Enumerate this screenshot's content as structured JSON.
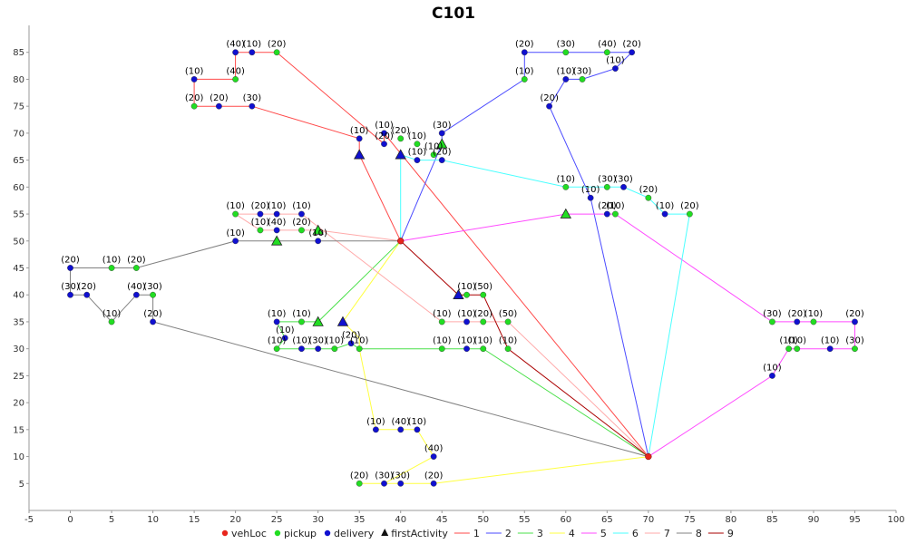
{
  "chart_data": {
    "type": "scatter",
    "title": "C101",
    "xlabel": "",
    "ylabel": "",
    "xlim": [
      -5,
      100
    ],
    "ylim": [
      0,
      90
    ],
    "x_ticks": [
      -5,
      0,
      5,
      10,
      15,
      20,
      25,
      30,
      35,
      40,
      45,
      50,
      55,
      60,
      65,
      70,
      75,
      80,
      85,
      90,
      95,
      100
    ],
    "y_ticks": [
      5,
      10,
      15,
      20,
      25,
      30,
      35,
      40,
      45,
      50,
      55,
      60,
      65,
      70,
      75,
      80,
      85
    ],
    "grid": false,
    "legend_position": "bottom",
    "colors": {
      "vehLoc": "#e8251c",
      "pickup": "#22dd22",
      "delivery": "#1010d0",
      "firstActivity": "#111111"
    },
    "legend": [
      {
        "label": "vehLoc",
        "kind": "dot",
        "color": "#e8251c"
      },
      {
        "label": "pickup",
        "kind": "dot",
        "color": "#22dd22"
      },
      {
        "label": "delivery",
        "kind": "dot",
        "color": "#1010d0"
      },
      {
        "label": "firstActivity",
        "kind": "triangle",
        "color": "#111111"
      },
      {
        "label": "1",
        "kind": "line",
        "color": "#ff4a4a"
      },
      {
        "label": "2",
        "kind": "line",
        "color": "#4a4aff"
      },
      {
        "label": "3",
        "kind": "line",
        "color": "#4ae04a"
      },
      {
        "label": "4",
        "kind": "line",
        "color": "#ffff40"
      },
      {
        "label": "5",
        "kind": "line",
        "color": "#ff4aff"
      },
      {
        "label": "6",
        "kind": "line",
        "color": "#4affff"
      },
      {
        "label": "7",
        "kind": "line",
        "color": "#ffaaaa"
      },
      {
        "label": "8",
        "kind": "line",
        "color": "#808080"
      },
      {
        "label": "9",
        "kind": "line",
        "color": "#aa0000"
      }
    ],
    "vehicle_locations": [
      {
        "x": 40,
        "y": 50
      },
      {
        "x": 70,
        "y": 10
      }
    ],
    "routes": [
      {
        "name": "1",
        "color": "#ff4a4a",
        "points": [
          [
            40,
            50
          ],
          [
            35,
            66
          ],
          [
            35,
            69
          ],
          [
            22,
            75
          ],
          [
            18,
            75
          ],
          [
            15,
            75
          ],
          [
            15,
            80
          ],
          [
            20,
            80
          ],
          [
            20,
            85
          ],
          [
            22,
            85
          ],
          [
            25,
            85
          ],
          [
            38,
            68
          ],
          [
            38,
            70
          ],
          [
            70,
            10
          ]
        ]
      },
      {
        "name": "2",
        "color": "#4a4aff",
        "points": [
          [
            40,
            50
          ],
          [
            45,
            68
          ],
          [
            45,
            70
          ],
          [
            55,
            80
          ],
          [
            55,
            85
          ],
          [
            60,
            85
          ],
          [
            65,
            85
          ],
          [
            68,
            85
          ],
          [
            66,
            82
          ],
          [
            62,
            80
          ],
          [
            60,
            80
          ],
          [
            58,
            75
          ],
          [
            63,
            58
          ],
          [
            70,
            10
          ]
        ]
      },
      {
        "name": "3",
        "color": "#4ae04a",
        "points": [
          [
            40,
            50
          ],
          [
            30,
            35
          ],
          [
            28,
            35
          ],
          [
            25,
            35
          ],
          [
            26,
            32
          ],
          [
            25,
            30
          ],
          [
            28,
            30
          ],
          [
            30,
            30
          ],
          [
            32,
            30
          ],
          [
            34,
            31
          ],
          [
            35,
            30
          ],
          [
            45,
            30
          ],
          [
            48,
            30
          ],
          [
            50,
            30
          ],
          [
            70,
            10
          ]
        ]
      },
      {
        "name": "4",
        "color": "#ffff40",
        "points": [
          [
            40,
            50
          ],
          [
            33,
            35
          ],
          [
            35,
            32
          ],
          [
            35,
            30
          ],
          [
            37,
            15
          ],
          [
            40,
            15
          ],
          [
            42,
            15
          ],
          [
            44,
            10
          ],
          [
            38,
            5
          ],
          [
            35,
            5
          ],
          [
            40,
            5
          ],
          [
            44,
            5
          ],
          [
            70,
            10
          ]
        ]
      },
      {
        "name": "5",
        "color": "#ff4aff",
        "points": [
          [
            40,
            50
          ],
          [
            60,
            55
          ],
          [
            65,
            55
          ],
          [
            66,
            55
          ],
          [
            85,
            35
          ],
          [
            88,
            35
          ],
          [
            90,
            35
          ],
          [
            95,
            35
          ],
          [
            95,
            30
          ],
          [
            92,
            30
          ],
          [
            88,
            30
          ],
          [
            87,
            30
          ],
          [
            85,
            25
          ],
          [
            70,
            10
          ]
        ]
      },
      {
        "name": "6",
        "color": "#4affff",
        "points": [
          [
            40,
            50
          ],
          [
            40,
            66
          ],
          [
            42,
            65
          ],
          [
            44,
            65
          ],
          [
            45,
            65
          ],
          [
            60,
            60
          ],
          [
            65,
            60
          ],
          [
            67,
            60
          ],
          [
            70,
            58
          ],
          [
            72,
            55
          ],
          [
            75,
            55
          ],
          [
            70,
            10
          ]
        ]
      },
      {
        "name": "7",
        "color": "#ffaaaa",
        "points": [
          [
            40,
            50
          ],
          [
            30,
            52
          ],
          [
            28,
            52
          ],
          [
            25,
            52
          ],
          [
            23,
            52
          ],
          [
            20,
            55
          ],
          [
            23,
            55
          ],
          [
            25,
            55
          ],
          [
            28,
            55
          ],
          [
            45,
            35
          ],
          [
            48,
            35
          ],
          [
            50,
            35
          ],
          [
            53,
            35
          ],
          [
            70,
            10
          ]
        ]
      },
      {
        "name": "8",
        "color": "#808080",
        "points": [
          [
            40,
            50
          ],
          [
            30,
            50
          ],
          [
            25,
            50
          ],
          [
            20,
            50
          ],
          [
            8,
            45
          ],
          [
            5,
            45
          ],
          [
            0,
            45
          ],
          [
            0,
            40
          ],
          [
            2,
            40
          ],
          [
            5,
            35
          ],
          [
            8,
            40
          ],
          [
            10,
            40
          ],
          [
            10,
            35
          ],
          [
            70,
            10
          ]
        ]
      },
      {
        "name": "9",
        "color": "#aa0000",
        "points": [
          [
            40,
            50
          ],
          [
            47,
            40
          ],
          [
            48,
            40
          ],
          [
            50,
            40
          ],
          [
            53,
            30
          ],
          [
            70,
            10
          ]
        ]
      }
    ],
    "first_activities": [
      {
        "x": 35,
        "y": 66,
        "route": "1",
        "type": "delivery"
      },
      {
        "x": 45,
        "y": 68,
        "route": "2",
        "type": "pickup"
      },
      {
        "x": 30,
        "y": 35,
        "route": "3",
        "type": "pickup"
      },
      {
        "x": 33,
        "y": 35,
        "route": "4",
        "type": "delivery"
      },
      {
        "x": 60,
        "y": 55,
        "route": "5",
        "type": "pickup"
      },
      {
        "x": 40,
        "y": 66,
        "route": "6",
        "type": "delivery"
      },
      {
        "x": 30,
        "y": 52,
        "route": "7",
        "type": "pickup"
      },
      {
        "x": 25,
        "y": 50,
        "route": "8",
        "type": "pickup"
      },
      {
        "x": 47,
        "y": 40,
        "route": "9",
        "type": "delivery"
      }
    ],
    "pickups": [
      {
        "x": 25,
        "y": 85,
        "label": "(20)"
      },
      {
        "x": 20,
        "y": 80,
        "label": "(40)"
      },
      {
        "x": 15,
        "y": 75,
        "label": "(20)"
      },
      {
        "x": 60,
        "y": 85,
        "label": "(30)"
      },
      {
        "x": 65,
        "y": 85,
        "label": "(40)"
      },
      {
        "x": 55,
        "y": 80,
        "label": "(10)"
      },
      {
        "x": 62,
        "y": 80,
        "label": "(30)"
      },
      {
        "x": 42,
        "y": 68,
        "label": "(10)"
      },
      {
        "x": 44,
        "y": 66,
        "label": "(10)"
      },
      {
        "x": 40,
        "y": 69,
        "label": "(20)"
      },
      {
        "x": 60,
        "y": 60,
        "label": "(10)"
      },
      {
        "x": 65,
        "y": 60,
        "label": "(30)"
      },
      {
        "x": 70,
        "y": 58,
        "label": "(20)"
      },
      {
        "x": 75,
        "y": 55,
        "label": "(20)"
      },
      {
        "x": 66,
        "y": 55,
        "label": "(10)"
      },
      {
        "x": 20,
        "y": 55,
        "label": "(10)"
      },
      {
        "x": 23,
        "y": 52,
        "label": "(10)"
      },
      {
        "x": 28,
        "y": 52,
        "label": "(20)"
      },
      {
        "x": 5,
        "y": 45,
        "label": "(10)"
      },
      {
        "x": 8,
        "y": 45,
        "label": "(20)"
      },
      {
        "x": 10,
        "y": 40,
        "label": "(30)"
      },
      {
        "x": 5,
        "y": 35,
        "label": "(10)"
      },
      {
        "x": 48,
        "y": 40,
        "label": "(10)"
      },
      {
        "x": 50,
        "y": 40,
        "label": "(50)"
      },
      {
        "x": 45,
        "y": 35,
        "label": "(10)"
      },
      {
        "x": 50,
        "y": 35,
        "label": "(20)"
      },
      {
        "x": 53,
        "y": 35,
        "label": "(50)"
      },
      {
        "x": 53,
        "y": 30,
        "label": "(10)"
      },
      {
        "x": 45,
        "y": 30,
        "label": "(10)"
      },
      {
        "x": 50,
        "y": 30,
        "label": "(10)"
      },
      {
        "x": 28,
        "y": 35,
        "label": "(10)"
      },
      {
        "x": 25,
        "y": 30,
        "label": "(10)"
      },
      {
        "x": 32,
        "y": 30,
        "label": "(10)"
      },
      {
        "x": 35,
        "y": 30,
        "label": "(10)"
      },
      {
        "x": 35,
        "y": 5,
        "label": "(20)"
      },
      {
        "x": 87,
        "y": 30,
        "label": "(10)"
      },
      {
        "x": 88,
        "y": 30,
        "label": "(10)"
      },
      {
        "x": 95,
        "y": 30,
        "label": "(30)"
      },
      {
        "x": 90,
        "y": 35,
        "label": "(10)"
      },
      {
        "x": 85,
        "y": 35,
        "label": "(30)"
      }
    ],
    "deliveries": [
      {
        "x": 20,
        "y": 85,
        "label": "(40)"
      },
      {
        "x": 22,
        "y": 85,
        "label": "(10)"
      },
      {
        "x": 15,
        "y": 80,
        "label": "(10)"
      },
      {
        "x": 18,
        "y": 75,
        "label": "(20)"
      },
      {
        "x": 22,
        "y": 75,
        "label": "(30)"
      },
      {
        "x": 35,
        "y": 69,
        "label": "(10)"
      },
      {
        "x": 38,
        "y": 68,
        "label": "(20)"
      },
      {
        "x": 38,
        "y": 70,
        "label": "(10)"
      },
      {
        "x": 55,
        "y": 85,
        "label": "(20)"
      },
      {
        "x": 68,
        "y": 85,
        "label": "(20)"
      },
      {
        "x": 66,
        "y": 82,
        "label": "(10)"
      },
      {
        "x": 60,
        "y": 80,
        "label": "(10)"
      },
      {
        "x": 58,
        "y": 75,
        "label": "(20)"
      },
      {
        "x": 45,
        "y": 70,
        "label": "(30)"
      },
      {
        "x": 42,
        "y": 65,
        "label": "(10)"
      },
      {
        "x": 45,
        "y": 65,
        "label": "(20)"
      },
      {
        "x": 63,
        "y": 58,
        "label": "(10)"
      },
      {
        "x": 67,
        "y": 60,
        "label": "(30)"
      },
      {
        "x": 72,
        "y": 55,
        "label": "(10)"
      },
      {
        "x": 65,
        "y": 55,
        "label": "(20)"
      },
      {
        "x": 23,
        "y": 55,
        "label": "(20)"
      },
      {
        "x": 25,
        "y": 55,
        "label": "(10)"
      },
      {
        "x": 28,
        "y": 55,
        "label": "(10)"
      },
      {
        "x": 25,
        "y": 52,
        "label": "(40)"
      },
      {
        "x": 20,
        "y": 50,
        "label": "(10)"
      },
      {
        "x": 30,
        "y": 50,
        "label": "(10)"
      },
      {
        "x": 0,
        "y": 45,
        "label": "(20)"
      },
      {
        "x": 0,
        "y": 40,
        "label": "(30)"
      },
      {
        "x": 2,
        "y": 40,
        "label": "(20)"
      },
      {
        "x": 8,
        "y": 40,
        "label": "(40)"
      },
      {
        "x": 10,
        "y": 35,
        "label": "(20)"
      },
      {
        "x": 48,
        "y": 35,
        "label": "(10)"
      },
      {
        "x": 48,
        "y": 30,
        "label": "(10)"
      },
      {
        "x": 25,
        "y": 35,
        "label": "(10)"
      },
      {
        "x": 26,
        "y": 32,
        "label": "(10)"
      },
      {
        "x": 28,
        "y": 30,
        "label": "(10)"
      },
      {
        "x": 30,
        "y": 30,
        "label": "(30)"
      },
      {
        "x": 34,
        "y": 31,
        "label": "(20)"
      },
      {
        "x": 37,
        "y": 15,
        "label": "(10)"
      },
      {
        "x": 40,
        "y": 15,
        "label": "(40)"
      },
      {
        "x": 42,
        "y": 15,
        "label": "(10)"
      },
      {
        "x": 44,
        "y": 10,
        "label": "(40)"
      },
      {
        "x": 38,
        "y": 5,
        "label": "(30)"
      },
      {
        "x": 40,
        "y": 5,
        "label": "(30)"
      },
      {
        "x": 44,
        "y": 5,
        "label": "(20)"
      },
      {
        "x": 88,
        "y": 35,
        "label": "(20)"
      },
      {
        "x": 95,
        "y": 35,
        "label": "(20)"
      },
      {
        "x": 92,
        "y": 30,
        "label": "(10)"
      },
      {
        "x": 85,
        "y": 25,
        "label": "(10)"
      }
    ]
  }
}
